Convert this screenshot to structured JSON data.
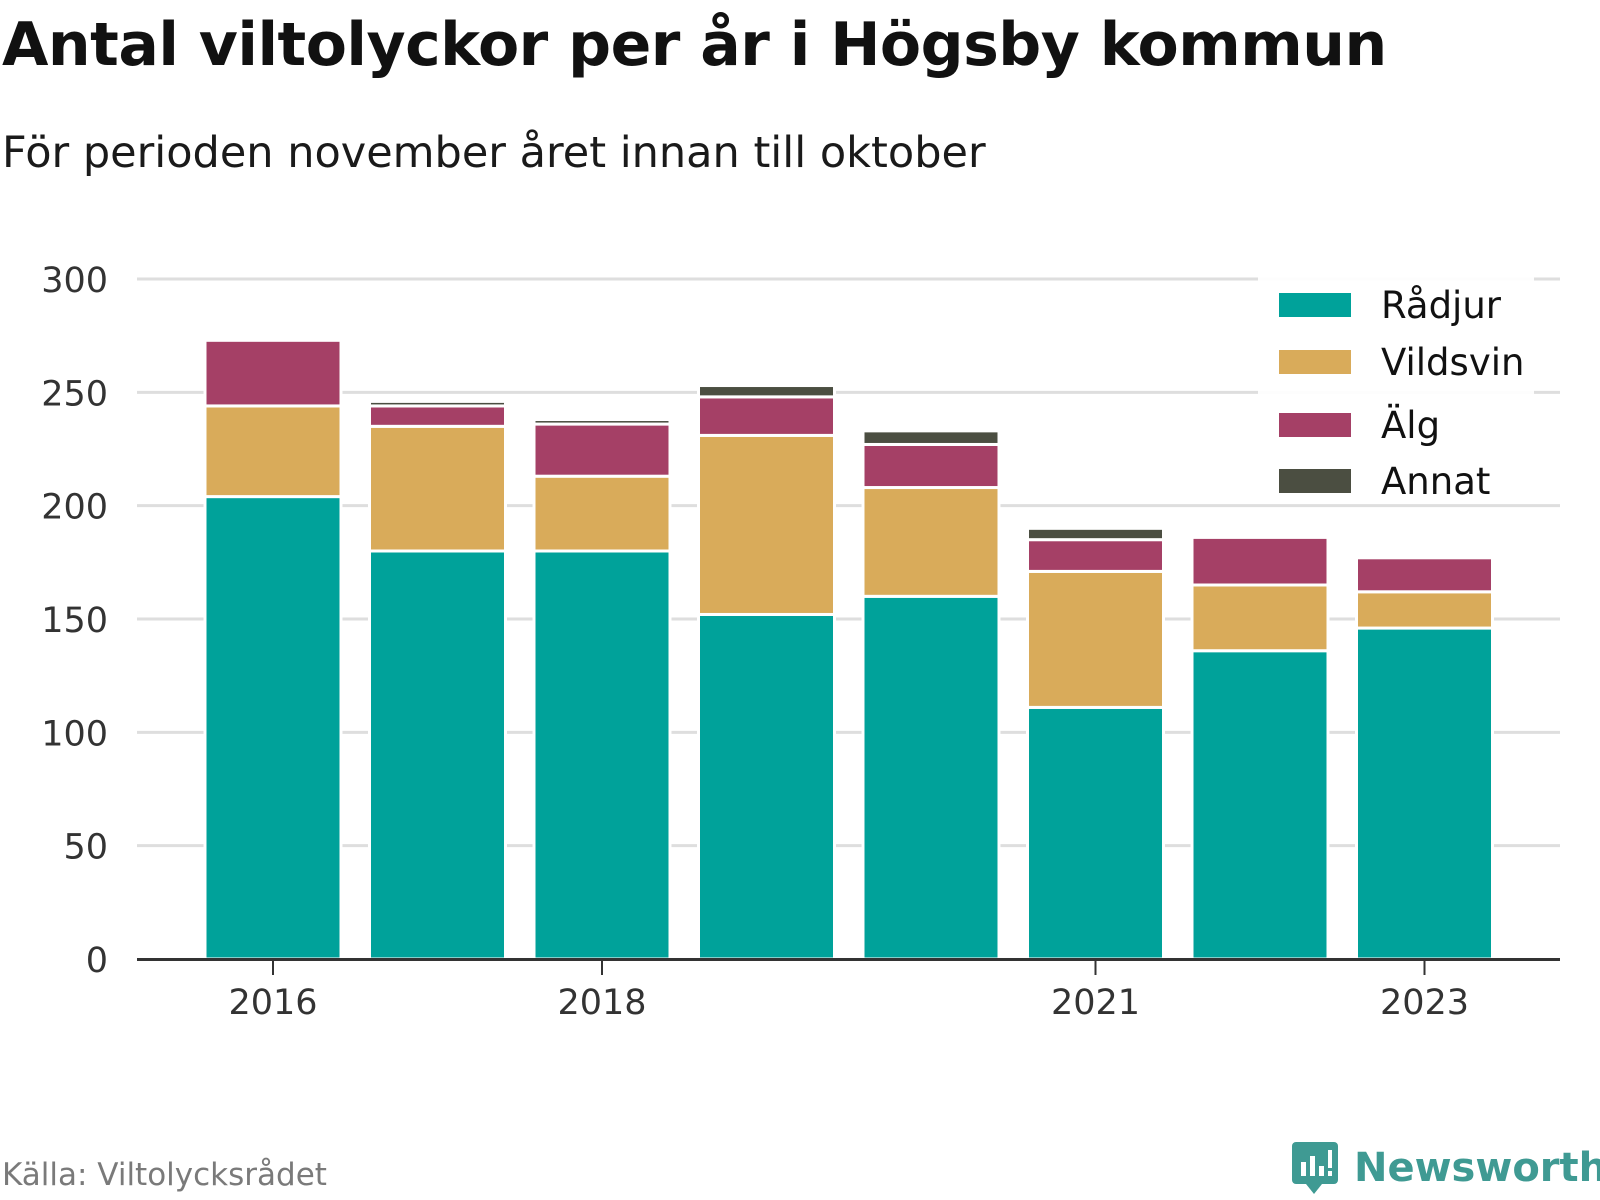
{
  "title": "Antal viltolyckor per år i Högsby kommun",
  "subtitle": "För perioden november året innan till oktober",
  "source": "Källa: Viltolycksrådet",
  "brand": {
    "name": "Newsworthy",
    "icon": "newsworthy-logo-icon",
    "color": "#3f9a93"
  },
  "chart_data": {
    "type": "bar",
    "stacked": true,
    "title": "Antal viltolyckor per år i Högsby kommun",
    "subtitle": "För perioden november året innan till oktober",
    "xlabel": "",
    "ylabel": "",
    "categories": [
      "2016",
      "2017",
      "2018",
      "2019",
      "2020",
      "2021",
      "2022",
      "2023"
    ],
    "x_tick_labels": [
      "2016",
      "2018",
      "2021",
      "2023"
    ],
    "y_ticks": [
      "0",
      "50",
      "100",
      "150",
      "200",
      "250",
      "300"
    ],
    "ylim": [
      0,
      300
    ],
    "grid": true,
    "legend_position": "top-right",
    "series": [
      {
        "name": "Rådjur",
        "color": "#00a29a",
        "values": [
          204,
          180,
          180,
          152,
          160,
          111,
          136,
          146
        ]
      },
      {
        "name": "Vildsvin",
        "color": "#d9ab5a",
        "values": [
          40,
          55,
          33,
          79,
          48,
          60,
          29,
          16
        ]
      },
      {
        "name": "Älg",
        "color": "#a54066",
        "values": [
          29,
          9,
          23,
          17,
          19,
          14,
          21,
          15
        ]
      },
      {
        "name": "Annat",
        "color": "#4b4e41",
        "values": [
          1,
          2,
          2,
          5,
          6,
          5,
          0,
          0
        ]
      }
    ]
  }
}
